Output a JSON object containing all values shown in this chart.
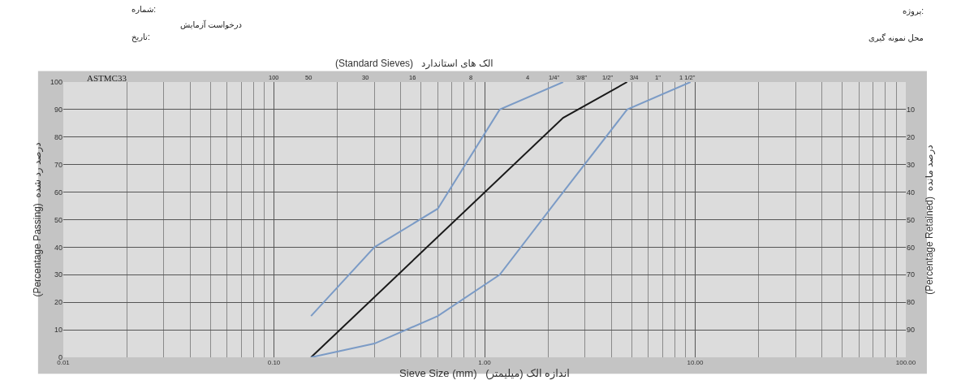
{
  "chart_data": {
    "type": "line",
    "xlabel": "Sieve Size (mm)   اندازه الک (میلیمتر)",
    "ylabel": "(Percentage Passing)  درصد رد شده",
    "y2label": "(Percentage Retained)  درصد مانده",
    "x2label": "(Standard Sieves)   الک های استاندارد",
    "annotations": [
      "شماره:",
      "درخواست آزمایش",
      "تاریخ:",
      "پروژه:",
      "محل نمونه گیری",
      "ASTMC33",
      "100",
      "50",
      "30",
      "16",
      "8",
      "4",
      "1/4\"",
      "3/8\"",
      "1/2\"",
      "3/4",
      "1\"",
      "1 1/2\""
    ],
    "series": [
      {
        "color": "#7b9bc6",
        "x": [
          0.15,
          0.3,
          0.6,
          1.18,
          2.36
        ],
        "values": [
          15,
          40,
          54,
          90,
          100
        ]
      },
      {
        "color": "#1a1a1a",
        "x": [
          0.15,
          2.36,
          4.75
        ],
        "values": [
          0,
          87,
          100
        ]
      },
      {
        "color": "#7b9bc6",
        "x": [
          0.15,
          0.3,
          0.6,
          1.18,
          2.36,
          4.75,
          9.5
        ],
        "values": [
          0,
          5,
          15,
          30,
          60,
          90,
          100
        ]
      }
    ],
    "log": "x",
    "xlim": [
      0.01,
      100
    ],
    "xticks": [
      {
        "value": 0.01,
        "label": "0.01"
      },
      {
        "value": 0.1,
        "label": "0.10"
      },
      {
        "value": 1,
        "label": "1.00"
      },
      {
        "value": 10,
        "label": "10.00"
      },
      {
        "value": 100,
        "label": "100.00"
      }
    ],
    "ylim": [
      0,
      100
    ],
    "yticks": [
      0,
      10,
      20,
      30,
      40,
      50,
      60,
      70,
      80,
      90,
      100
    ],
    "y2lim": [
      100,
      0
    ],
    "y2ticks": [
      10,
      20,
      30,
      40,
      50,
      60,
      70,
      80,
      90
    ],
    "grid": true,
    "marker": "none",
    "line_style": "solid"
  }
}
